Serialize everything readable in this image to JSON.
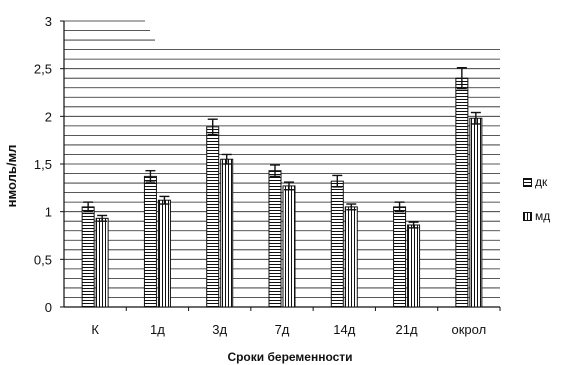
{
  "chart_data": {
    "type": "bar",
    "categories": [
      "К",
      "1д",
      "3д",
      "7д",
      "14д",
      "21д",
      "окрол"
    ],
    "series": [
      {
        "name": "дк",
        "values": [
          1.05,
          1.37,
          1.89,
          1.43,
          1.32,
          1.05,
          2.4
        ],
        "errors": [
          0.05,
          0.06,
          0.08,
          0.06,
          0.06,
          0.05,
          0.11
        ]
      },
      {
        "name": "мд",
        "values": [
          0.93,
          1.12,
          1.55,
          1.27,
          1.05,
          0.86,
          1.98
        ],
        "errors": [
          0.03,
          0.04,
          0.05,
          0.04,
          0.03,
          0.03,
          0.06
        ]
      }
    ],
    "yticks": [
      "0",
      "0,5",
      "1",
      "1,5",
      "2",
      "2,5",
      "3"
    ],
    "ylim": [
      0,
      3
    ],
    "xlabel": "Сроки беременности",
    "ylabel": "нмоль/мл",
    "legend_position": "right",
    "grid": true
  }
}
